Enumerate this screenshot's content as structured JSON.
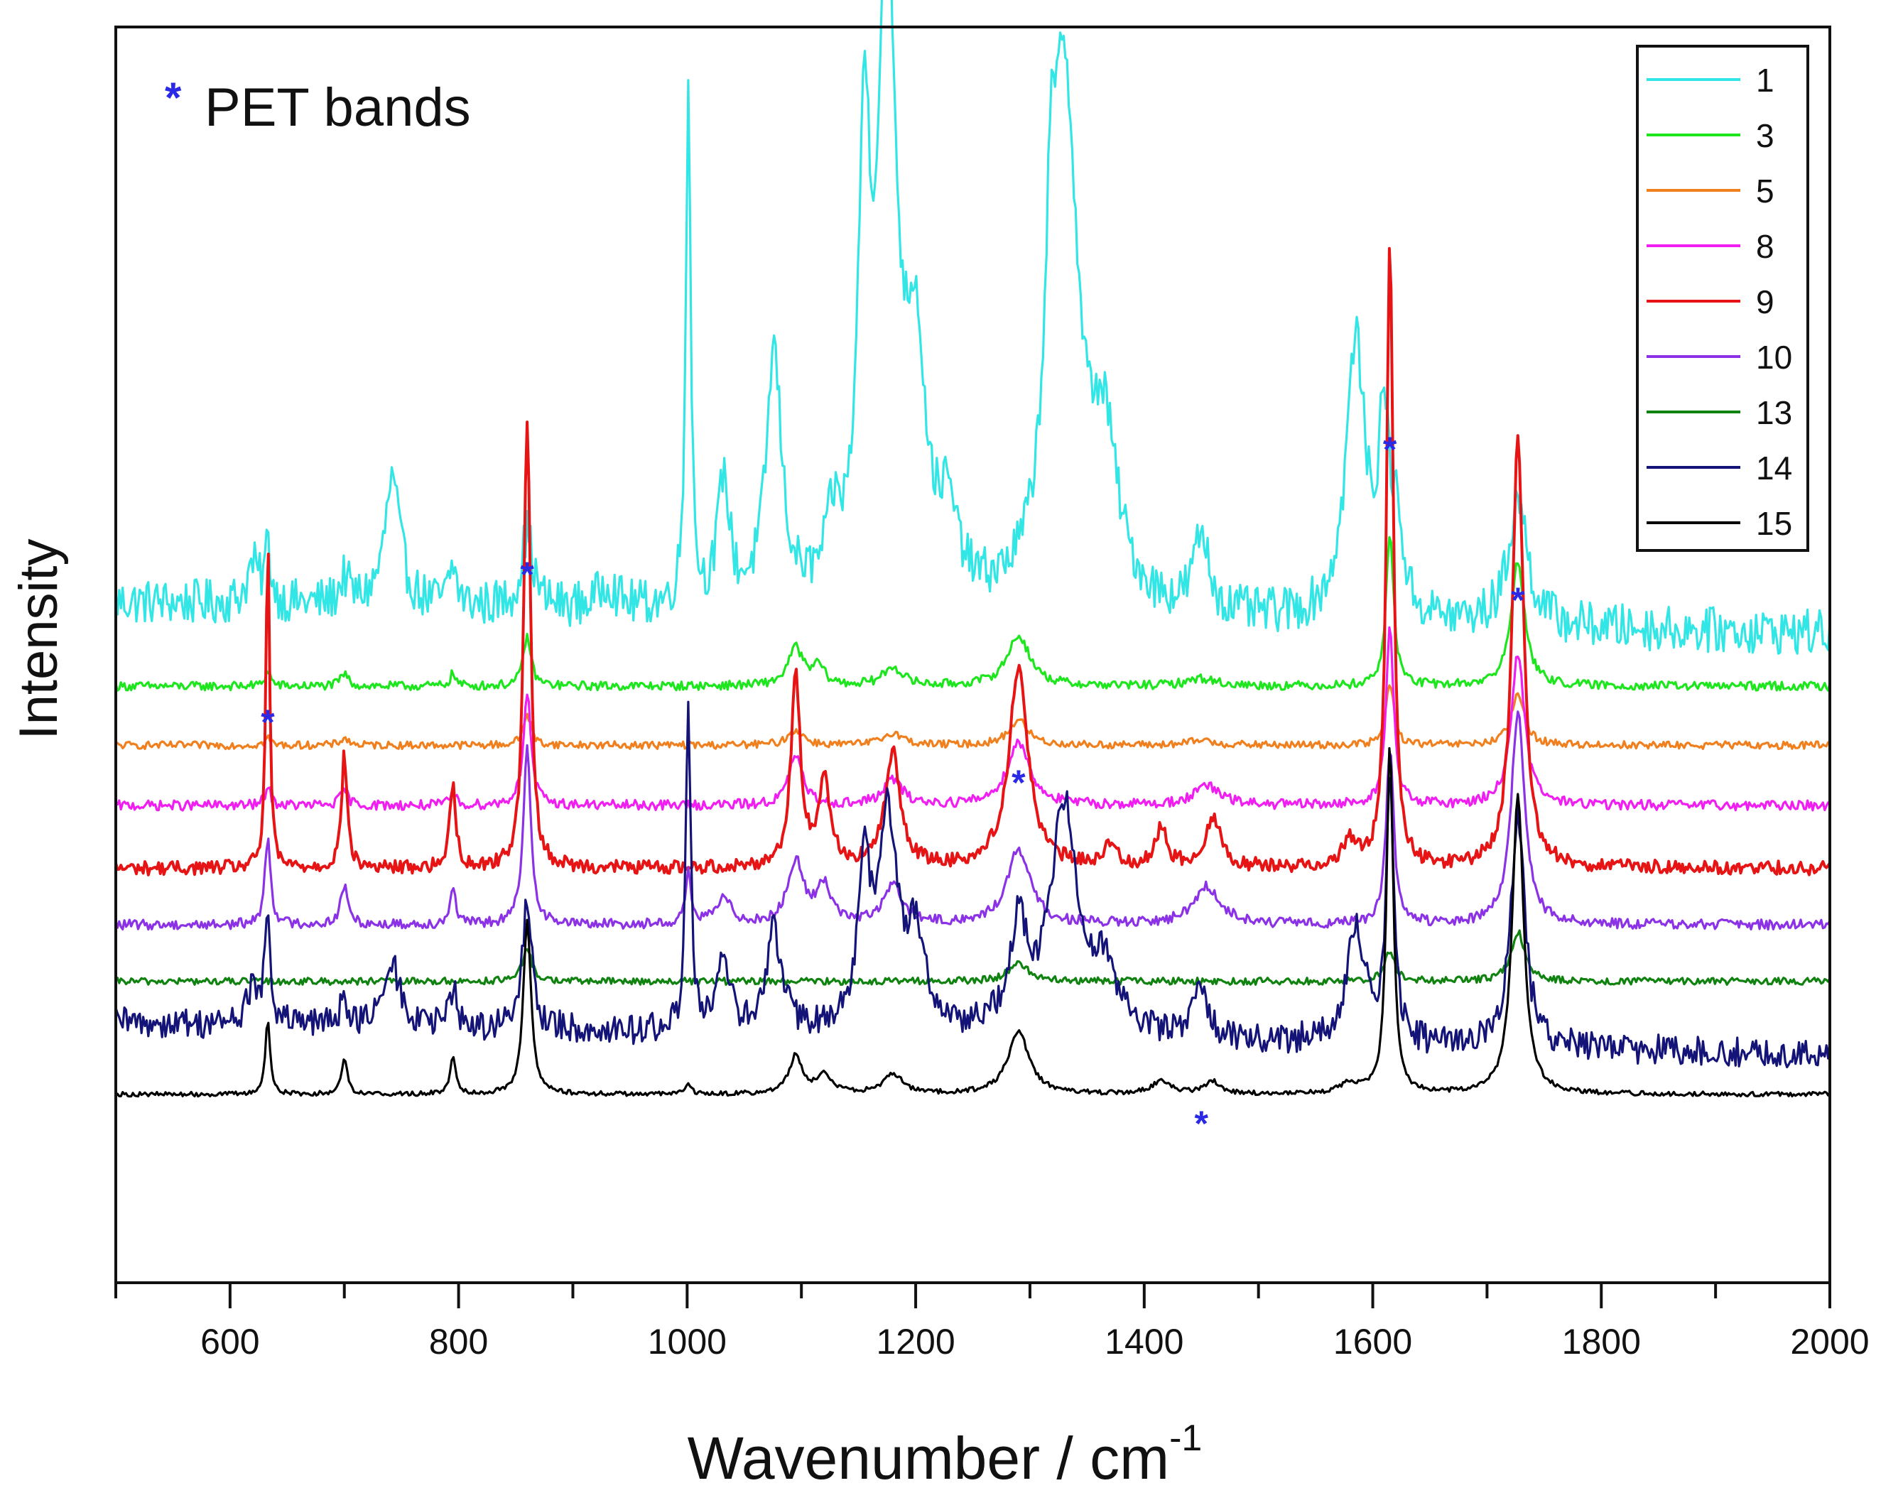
{
  "chart_data": {
    "type": "line",
    "title": "",
    "xlabel": "Wavenumber / cm",
    "xlabel_superscript": "-1",
    "ylabel": "Intensity",
    "xlim": [
      500,
      2000
    ],
    "ylim": [
      0,
      100
    ],
    "x_ticks": [
      600,
      800,
      1000,
      1200,
      1400,
      1600,
      1800,
      2000
    ],
    "y_ticks_labeled": false,
    "legend_position": "top-right",
    "annotation": {
      "marker": "*",
      "text": "PET bands",
      "color": "#2a2ae6"
    },
    "pet_band_positions": [
      633,
      860,
      1290,
      1450,
      1615,
      1727
    ],
    "series": [
      {
        "name": "1",
        "color": "#33e6e6",
        "baseline": 53,
        "peaks": [
          [
            620,
            3,
            6
          ],
          [
            633,
            4.5,
            3
          ],
          [
            700,
            2,
            5
          ],
          [
            742,
            10,
            8
          ],
          [
            795,
            3,
            4
          ],
          [
            860,
            6,
            6
          ],
          [
            930,
            2,
            8
          ],
          [
            1001,
            42,
            2.5
          ],
          [
            1032,
            10,
            6
          ],
          [
            1076,
            20,
            8
          ],
          [
            1128,
            5,
            8
          ],
          [
            1155,
            33,
            6
          ],
          [
            1175,
            50,
            10
          ],
          [
            1200,
            18,
            10
          ],
          [
            1228,
            6,
            10
          ],
          [
            1318,
            15,
            5
          ],
          [
            1330,
            42,
            14
          ],
          [
            1365,
            12,
            14
          ],
          [
            1450,
            6,
            8
          ],
          [
            1585,
            22,
            10
          ],
          [
            1610,
            15,
            6
          ],
          [
            1622,
            6,
            5
          ],
          [
            1727,
            10,
            10
          ]
        ]
      },
      {
        "name": "3",
        "color": "#1ee61e",
        "baseline": 47.5,
        "peaks": [
          [
            633,
            1.2,
            3
          ],
          [
            700,
            1,
            4
          ],
          [
            795,
            1,
            3
          ],
          [
            860,
            4,
            4
          ],
          [
            1095,
            3,
            8
          ],
          [
            1115,
            1.5,
            6
          ],
          [
            1180,
            1.5,
            10
          ],
          [
            1290,
            4,
            12
          ],
          [
            1450,
            0.6,
            15
          ],
          [
            1615,
            12,
            4
          ],
          [
            1727,
            10,
            7
          ]
        ]
      },
      {
        "name": "5",
        "color": "#f07f1e",
        "baseline": 42.8,
        "peaks": [
          [
            633,
            0.6,
            3
          ],
          [
            700,
            0.6,
            4
          ],
          [
            860,
            2.5,
            4
          ],
          [
            1095,
            1.2,
            8
          ],
          [
            1180,
            1,
            10
          ],
          [
            1290,
            2,
            10
          ],
          [
            1450,
            0.4,
            12
          ],
          [
            1615,
            5,
            4
          ],
          [
            1727,
            4,
            7
          ]
        ]
      },
      {
        "name": "8",
        "color": "#f01ef0",
        "baseline": 38,
        "peaks": [
          [
            633,
            1.5,
            3
          ],
          [
            700,
            1.2,
            4
          ],
          [
            795,
            1,
            3
          ],
          [
            860,
            9,
            4
          ],
          [
            1095,
            4,
            7
          ],
          [
            1180,
            2,
            10
          ],
          [
            1290,
            5,
            12
          ],
          [
            1455,
            1.5,
            14
          ],
          [
            1615,
            14,
            4
          ],
          [
            1727,
            12,
            7
          ]
        ]
      },
      {
        "name": "9",
        "color": "#e61414",
        "baseline": 33,
        "peaks": [
          [
            633,
            26,
            2
          ],
          [
            700,
            9,
            3
          ],
          [
            795,
            7,
            3
          ],
          [
            860,
            36,
            3.5
          ],
          [
            1095,
            15,
            5
          ],
          [
            1120,
            7,
            6
          ],
          [
            1180,
            9,
            8
          ],
          [
            1290,
            16,
            10
          ],
          [
            1370,
            1.5,
            8
          ],
          [
            1415,
            3,
            6
          ],
          [
            1460,
            4,
            8
          ],
          [
            1580,
            2,
            8
          ],
          [
            1615,
            50,
            3.5
          ],
          [
            1727,
            34,
            6
          ]
        ]
      },
      {
        "name": "10",
        "color": "#8c32e6",
        "baseline": 28.5,
        "peaks": [
          [
            633,
            7,
            3
          ],
          [
            700,
            3,
            4
          ],
          [
            795,
            3,
            3
          ],
          [
            860,
            14,
            4
          ],
          [
            1001,
            4,
            3
          ],
          [
            1032,
            2,
            8
          ],
          [
            1095,
            5,
            8
          ],
          [
            1120,
            3,
            8
          ],
          [
            1180,
            3,
            10
          ],
          [
            1290,
            6,
            12
          ],
          [
            1455,
            3,
            14
          ],
          [
            1615,
            14,
            4
          ],
          [
            1727,
            17,
            7
          ]
        ]
      },
      {
        "name": "13",
        "color": "#0f820f",
        "baseline": 24,
        "peaks": [
          [
            860,
            2.5,
            5
          ],
          [
            1290,
            1.5,
            10
          ],
          [
            1615,
            2.5,
            5
          ],
          [
            1727,
            4,
            7
          ]
        ]
      },
      {
        "name": "14",
        "color": "#141478",
        "baseline": 19.5,
        "peaks": [
          [
            620,
            3,
            6
          ],
          [
            633,
            8,
            3
          ],
          [
            700,
            2,
            5
          ],
          [
            742,
            5,
            8
          ],
          [
            795,
            3,
            4
          ],
          [
            860,
            10,
            5
          ],
          [
            1001,
            27,
            2.5
          ],
          [
            1032,
            6,
            6
          ],
          [
            1076,
            8,
            8
          ],
          [
            1155,
            12,
            6
          ],
          [
            1175,
            17,
            10
          ],
          [
            1200,
            7,
            10
          ],
          [
            1290,
            8,
            10
          ],
          [
            1330,
            18,
            14
          ],
          [
            1365,
            5,
            14
          ],
          [
            1450,
            4,
            8
          ],
          [
            1585,
            9,
            10
          ],
          [
            1615,
            20,
            4
          ],
          [
            1727,
            19,
            7
          ]
        ]
      },
      {
        "name": "15",
        "color": "#000000",
        "baseline": 15,
        "peaks": [
          [
            633,
            6,
            2.5
          ],
          [
            700,
            3,
            3
          ],
          [
            795,
            3,
            3
          ],
          [
            860,
            14,
            4
          ],
          [
            1001,
            0.8,
            3
          ],
          [
            1095,
            3,
            7
          ],
          [
            1120,
            1.5,
            8
          ],
          [
            1180,
            1.6,
            10
          ],
          [
            1290,
            5,
            11
          ],
          [
            1415,
            1,
            10
          ],
          [
            1460,
            1,
            8
          ],
          [
            1580,
            0.8,
            10
          ],
          [
            1615,
            28,
            3.5
          ],
          [
            1727,
            24,
            6
          ]
        ]
      }
    ]
  }
}
